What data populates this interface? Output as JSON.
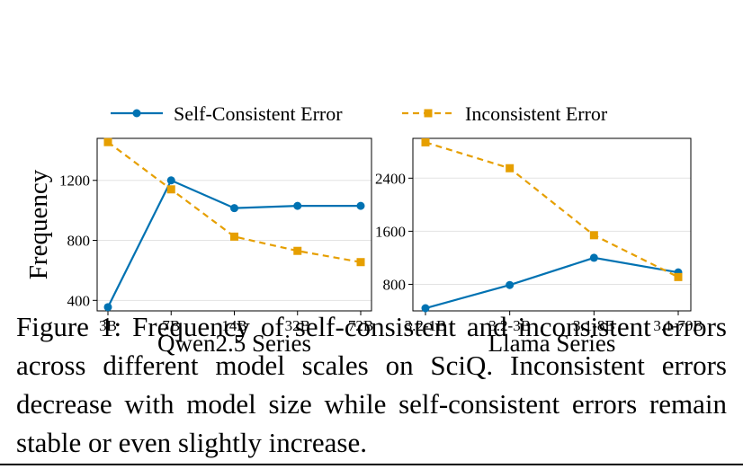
{
  "chart_data": [
    {
      "type": "line",
      "xlabel": "Qwen2.5 Series",
      "ylabel": "Frequency",
      "categories": [
        "3B",
        "7B",
        "14B",
        "32B",
        "72B"
      ],
      "yticks": [
        "400",
        "800",
        "1200"
      ],
      "ylim": [
        330,
        1480
      ],
      "grid": true,
      "series": [
        {
          "name": "Self-Consistent Error",
          "values": [
            355,
            1200,
            1015,
            1030,
            1030
          ]
        },
        {
          "name": "Inconsistent Error",
          "values": [
            1455,
            1140,
            825,
            730,
            655
          ]
        }
      ]
    },
    {
      "type": "line",
      "xlabel": "Llama Series",
      "ylabel": "",
      "categories": [
        "3.2-1B",
        "3.2-3B",
        "3.1-8B",
        "3.1-70B"
      ],
      "yticks": [
        "800",
        "1600",
        "2400"
      ],
      "ylim": [
        400,
        3000
      ],
      "grid": true,
      "series": [
        {
          "name": "Self-Consistent Error",
          "values": [
            440,
            790,
            1200,
            980
          ]
        },
        {
          "name": "Inconsistent Error",
          "values": [
            2940,
            2550,
            1540,
            910
          ]
        }
      ]
    }
  ],
  "legend": {
    "position": "top",
    "items": [
      {
        "label": "Self-Consistent Error",
        "color": "#0072B2",
        "marker": "circle",
        "dash": "solid"
      },
      {
        "label": "Inconsistent Error",
        "color": "#E69F00",
        "marker": "square",
        "dash": "dashed"
      }
    ]
  },
  "caption": "Figure 1: Frequency of self-consistent and inconsistent errors across different model scales on SciQ. Inconsistent errors decrease with model size while self-consistent errors remain stable or even slightly increase."
}
